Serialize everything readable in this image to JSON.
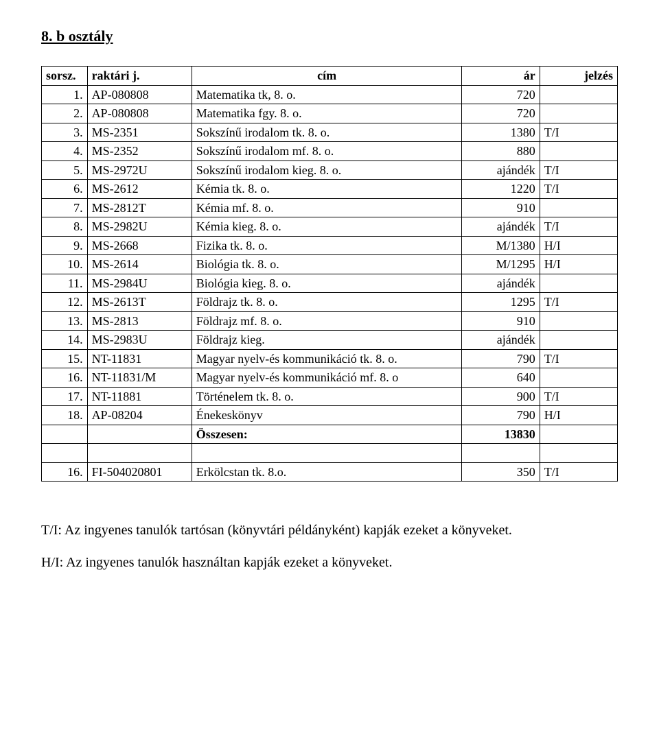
{
  "title": "8. b osztály",
  "columns": [
    "sorsz.",
    "raktári j.",
    "cím",
    "ár",
    "jelzés"
  ],
  "rows": [
    {
      "n": "1.",
      "code": "AP-080808",
      "title": "Matematika tk, 8. o.",
      "price": "720",
      "mark": ""
    },
    {
      "n": "2.",
      "code": "AP-080808",
      "title": "Matematika fgy. 8. o.",
      "price": "720",
      "mark": ""
    },
    {
      "n": "3.",
      "code": "MS-2351",
      "title": "Sokszínű irodalom tk. 8. o.",
      "price": "1380",
      "mark": "T/I"
    },
    {
      "n": "4.",
      "code": "MS-2352",
      "title": "Sokszínű irodalom mf. 8. o.",
      "price": "880",
      "mark": ""
    },
    {
      "n": "5.",
      "code": "MS-2972U",
      "title": "Sokszínű irodalom kieg. 8. o.",
      "price": "ajándék",
      "mark": "T/I"
    },
    {
      "n": "6.",
      "code": "MS-2612",
      "title": "Kémia tk. 8. o.",
      "price": "1220",
      "mark": "T/I"
    },
    {
      "n": "7.",
      "code": "MS-2812T",
      "title": "Kémia mf. 8. o.",
      "price": "910",
      "mark": ""
    },
    {
      "n": "8.",
      "code": "MS-2982U",
      "title": "Kémia kieg. 8. o.",
      "price": "ajándék",
      "mark": "T/I"
    },
    {
      "n": "9.",
      "code": "MS-2668",
      "title": "Fizika tk. 8. o.",
      "price": "M/1380",
      "mark": "H/I"
    },
    {
      "n": "10.",
      "code": "MS-2614",
      "title": "Biológia tk. 8. o.",
      "price": "M/1295",
      "mark": "H/I"
    },
    {
      "n": "11.",
      "code": "MS-2984U",
      "title": "Biológia kieg. 8. o.",
      "price": "ajándék",
      "mark": ""
    },
    {
      "n": "12.",
      "code": "MS-2613T",
      "title": "Földrajz tk. 8. o.",
      "price": "1295",
      "mark": "T/I"
    },
    {
      "n": "13.",
      "code": "MS-2813",
      "title": "Földrajz mf. 8. o.",
      "price": "910",
      "mark": ""
    },
    {
      "n": "14.",
      "code": "MS-2983U",
      "title": "Földrajz kieg.",
      "price": "ajándék",
      "mark": ""
    },
    {
      "n": "15.",
      "code": "NT-11831",
      "title": "Magyar nyelv-és kommunikáció tk. 8. o.",
      "price": "790",
      "mark": "T/I"
    },
    {
      "n": "16.",
      "code": "NT-11831/M",
      "title": "Magyar nyelv-és kommunikáció mf. 8. o",
      "price": "640",
      "mark": ""
    },
    {
      "n": "17.",
      "code": "NT-11881",
      "title": "Történelem tk. 8. o.",
      "price": "900",
      "mark": "T/I"
    },
    {
      "n": "18.",
      "code": "AP-08204",
      "title": "Énekeskönyv",
      "price": "790",
      "mark": "H/I"
    }
  ],
  "total_label": "Összesen:",
  "total_value": "13830",
  "extra_row": {
    "n": "16.",
    "code": "FI-504020801",
    "title": "Erkölcstan tk. 8.o.",
    "price": "350",
    "mark": "T/I"
  },
  "note1": "T/I: Az ingyenes tanulók tartósan (könyvtári példányként) kapják ezeket a könyveket.",
  "note2": "H/I: Az ingyenes tanulók használtan kapják ezeket a könyveket."
}
